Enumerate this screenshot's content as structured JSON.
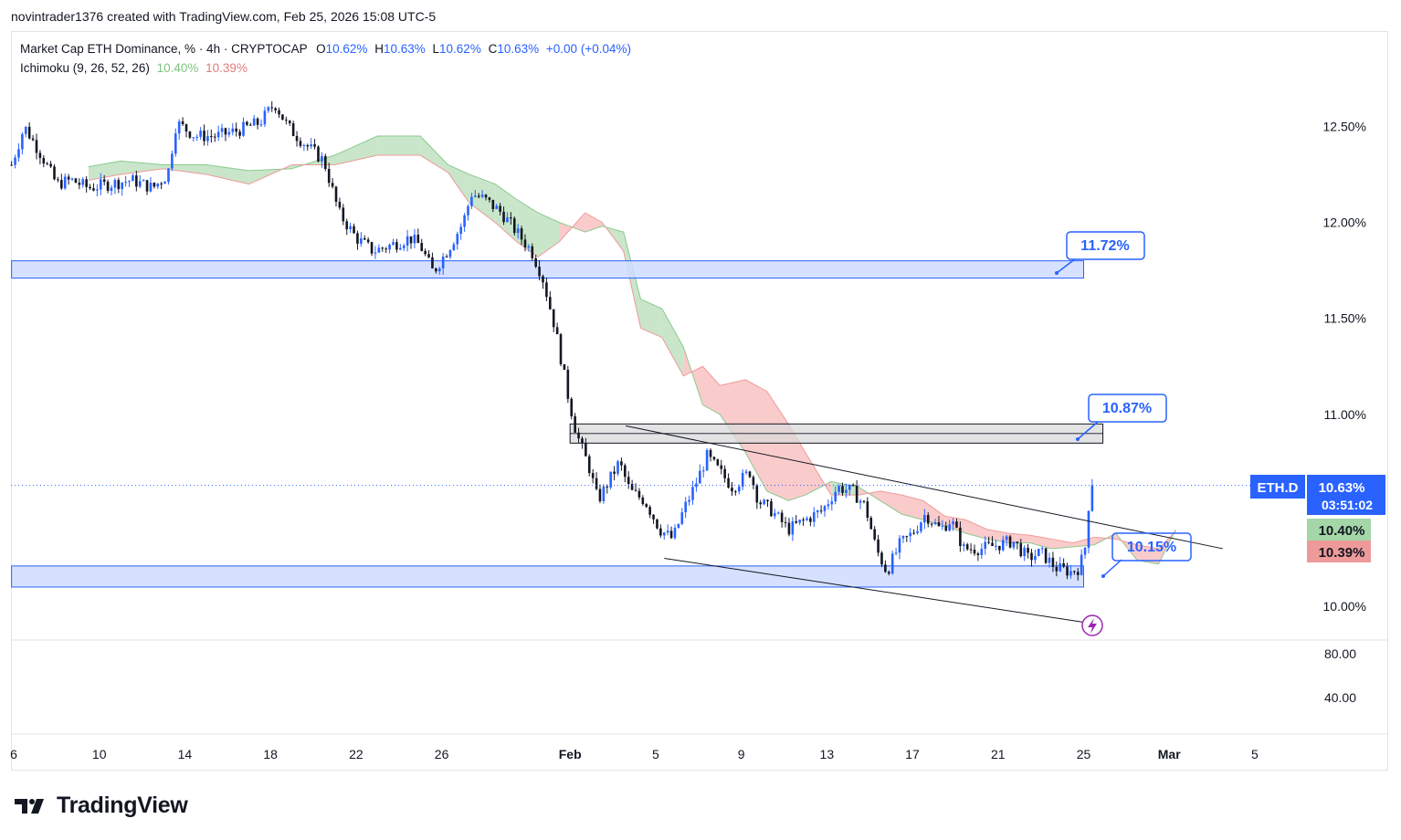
{
  "header": {
    "author_line": "novintrader1376 created with TradingView.com, Feb 25, 2026 15:08 UTC-5"
  },
  "legend": {
    "symbol": "Market Cap ETH Dominance, % · 4h · CRYPTOCAP",
    "o_label": "O",
    "o_value": "10.62%",
    "h_label": "H",
    "h_value": "10.63%",
    "l_label": "L",
    "l_value": "10.62%",
    "c_label": "C",
    "c_value": "10.63%",
    "change": "+0.00 (+0.04%)",
    "indicator": "Ichimoku (9, 26, 52, 26)",
    "ind_value_1": "10.40%",
    "ind_value_2": "10.39%"
  },
  "price_badges": {
    "symbol": "ETH.D",
    "last": "10.63%",
    "countdown": "03:51:02",
    "cloud_a": "10.40%",
    "cloud_b": "10.39%"
  },
  "annotations": {
    "label_top": "11.72%",
    "label_mid": "10.87%",
    "label_low": "10.15%"
  },
  "footer": {
    "brand": "TradingView"
  },
  "colors": {
    "bull": "#2962ff",
    "bear": "#131722",
    "cloud_bull": "#a5d6a7",
    "cloud_bear": "#f7a8a8",
    "zone_fill": "#cfdcff",
    "zone_border": "#2962ff",
    "accent": "#2962ff"
  },
  "chart_data": {
    "type": "candlestick",
    "title": "Market Cap ETH Dominance, % · 4h · CRYPTOCAP",
    "xlabel": "",
    "ylabel": "%",
    "ylim": [
      9.81,
      12.97
    ],
    "y_ticks": [
      "12.50%",
      "12.00%",
      "11.50%",
      "11.00%",
      "10.00%"
    ],
    "y_tick_values": [
      12.5,
      12.0,
      11.5,
      11.0,
      10.0
    ],
    "x_ticks": [
      "6",
      "10",
      "14",
      "18",
      "22",
      "26",
      "Feb",
      "5",
      "9",
      "13",
      "17",
      "21",
      "25",
      "Mar",
      "5"
    ],
    "x_tick_days": [
      6,
      10,
      14,
      18,
      22,
      26,
      32,
      36,
      40,
      44,
      48,
      52,
      56,
      60,
      64
    ],
    "oscillator_ticks": [
      "80.00",
      "40.00"
    ],
    "oscillator_tick_values": [
      80,
      40
    ],
    "price_path": [
      [
        5.9,
        12.3
      ],
      [
        6.5,
        12.5
      ],
      [
        7.3,
        12.35
      ],
      [
        8.0,
        12.2
      ],
      [
        8.7,
        12.22
      ],
      [
        9.5,
        12.18
      ],
      [
        10.5,
        12.2
      ],
      [
        11.5,
        12.22
      ],
      [
        12.5,
        12.18
      ],
      [
        13.2,
        12.25
      ],
      [
        13.6,
        12.52
      ],
      [
        14.5,
        12.45
      ],
      [
        15.5,
        12.45
      ],
      [
        16.5,
        12.48
      ],
      [
        17.5,
        12.52
      ],
      [
        18.2,
        12.62
      ],
      [
        18.8,
        12.5
      ],
      [
        19.5,
        12.42
      ],
      [
        20.5,
        12.32
      ],
      [
        21.2,
        12.05
      ],
      [
        22.0,
        11.92
      ],
      [
        22.8,
        11.85
      ],
      [
        23.6,
        11.88
      ],
      [
        24.5,
        11.92
      ],
      [
        25.0,
        11.88
      ],
      [
        25.6,
        11.74
      ],
      [
        26.3,
        11.86
      ],
      [
        27.0,
        12.0
      ],
      [
        27.4,
        12.15
      ],
      [
        28.0,
        12.12
      ],
      [
        28.8,
        12.05
      ],
      [
        29.5,
        11.95
      ],
      [
        30.2,
        11.85
      ],
      [
        30.7,
        11.72
      ],
      [
        31.3,
        11.45
      ],
      [
        31.9,
        11.1
      ],
      [
        32.3,
        10.9
      ],
      [
        32.9,
        10.72
      ],
      [
        33.3,
        10.55
      ],
      [
        33.8,
        10.65
      ],
      [
        34.3,
        10.75
      ],
      [
        34.8,
        10.6
      ],
      [
        35.5,
        10.55
      ],
      [
        36.2,
        10.4
      ],
      [
        36.8,
        10.35
      ],
      [
        37.3,
        10.5
      ],
      [
        37.8,
        10.62
      ],
      [
        38.4,
        10.78
      ],
      [
        39.0,
        10.7
      ],
      [
        39.6,
        10.62
      ],
      [
        40.4,
        10.7
      ],
      [
        40.8,
        10.55
      ],
      [
        41.4,
        10.5
      ],
      [
        42.2,
        10.4
      ],
      [
        43.0,
        10.45
      ],
      [
        43.8,
        10.5
      ],
      [
        44.5,
        10.62
      ],
      [
        45.2,
        10.6
      ],
      [
        45.8,
        10.52
      ],
      [
        46.3,
        10.3
      ],
      [
        46.8,
        10.18
      ],
      [
        47.4,
        10.32
      ],
      [
        48.0,
        10.38
      ],
      [
        48.6,
        10.48
      ],
      [
        49.3,
        10.4
      ],
      [
        49.8,
        10.45
      ],
      [
        50.4,
        10.3
      ],
      [
        51.2,
        10.3
      ],
      [
        52.0,
        10.32
      ],
      [
        52.7,
        10.34
      ],
      [
        53.4,
        10.25
      ],
      [
        54.0,
        10.28
      ],
      [
        54.7,
        10.2
      ],
      [
        55.4,
        10.18
      ],
      [
        55.8,
        10.2
      ],
      [
        56.1,
        10.32
      ],
      [
        56.25,
        10.55
      ],
      [
        56.45,
        10.63
      ]
    ],
    "ichimoku_cloud": [
      [
        9.5,
        12.29,
        12.22
      ],
      [
        11.0,
        12.32,
        12.25
      ],
      [
        13.0,
        12.3,
        12.28
      ],
      [
        15.0,
        12.3,
        12.25
      ],
      [
        17.0,
        12.27,
        12.2
      ],
      [
        19.0,
        12.28,
        12.3
      ],
      [
        21.0,
        12.35,
        12.3
      ],
      [
        23.0,
        12.45,
        12.35
      ],
      [
        25.0,
        12.45,
        12.35
      ],
      [
        26.3,
        12.3,
        12.26
      ],
      [
        27.3,
        12.25,
        12.1
      ],
      [
        28.5,
        12.2,
        12.0
      ],
      [
        29.5,
        12.12,
        11.9
      ],
      [
        30.5,
        12.05,
        11.82
      ],
      [
        31.5,
        12.0,
        11.9
      ],
      [
        32.7,
        11.95,
        12.05
      ],
      [
        33.5,
        11.98,
        12.0
      ],
      [
        34.5,
        11.95,
        11.85
      ],
      [
        35.3,
        11.6,
        11.45
      ],
      [
        36.3,
        11.55,
        11.4
      ],
      [
        37.3,
        11.35,
        11.2
      ],
      [
        38.2,
        11.05,
        11.25
      ],
      [
        39.0,
        11.0,
        11.15
      ],
      [
        40.2,
        10.8,
        11.18
      ],
      [
        41.2,
        10.6,
        11.12
      ],
      [
        42.2,
        10.55,
        10.95
      ],
      [
        43.0,
        10.58,
        10.8
      ],
      [
        44.2,
        10.65,
        10.58
      ],
      [
        45.5,
        10.62,
        10.58
      ],
      [
        46.5,
        10.55,
        10.6
      ],
      [
        47.5,
        10.48,
        10.58
      ],
      [
        48.5,
        10.45,
        10.55
      ],
      [
        49.5,
        10.42,
        10.47
      ],
      [
        50.5,
        10.38,
        10.45
      ],
      [
        51.5,
        10.35,
        10.4
      ],
      [
        52.5,
        10.33,
        10.38
      ],
      [
        53.5,
        10.33,
        10.37
      ],
      [
        54.5,
        10.3,
        10.35
      ],
      [
        55.5,
        10.31,
        10.33
      ],
      [
        56.5,
        10.32,
        10.36
      ],
      [
        57.5,
        10.38,
        10.35
      ],
      [
        58.5,
        10.24,
        10.32
      ],
      [
        59.5,
        10.22,
        10.3
      ],
      [
        60.3,
        10.4,
        10.39
      ]
    ],
    "zones": [
      {
        "from_day": 5.9,
        "to_day": 56.0,
        "low": 11.71,
        "high": 11.8,
        "style": "blue"
      },
      {
        "from_day": 5.9,
        "to_day": 56.0,
        "low": 10.1,
        "high": 10.21,
        "style": "blue"
      },
      {
        "from_day": 32.0,
        "to_day": 56.9,
        "low": 10.85,
        "high": 10.95,
        "style": "gray"
      }
    ],
    "trendlines": [
      {
        "from": [
          34.6,
          10.94
        ],
        "to": [
          62.5,
          10.3
        ]
      },
      {
        "from": [
          36.4,
          10.25
        ],
        "to": [
          56.4,
          9.91
        ]
      }
    ],
    "last_price": 10.63
  }
}
